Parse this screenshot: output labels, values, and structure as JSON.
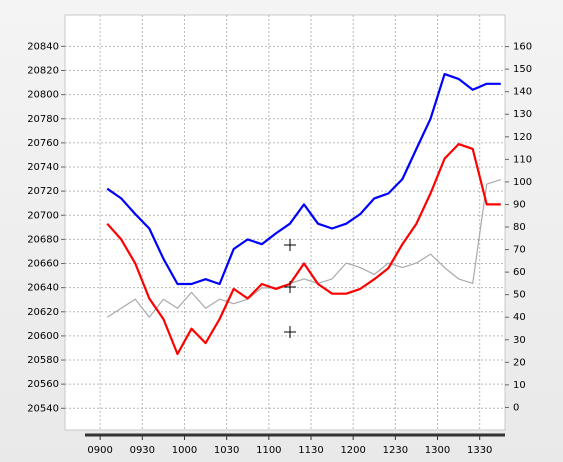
{
  "chart_data": {
    "type": "line",
    "x": [
      "0905",
      "0915",
      "0925",
      "0935",
      "0945",
      "0955",
      "1005",
      "1015",
      "1025",
      "1035",
      "1045",
      "1055",
      "1105",
      "1115",
      "1125",
      "1135",
      "1145",
      "1155",
      "1205",
      "1215",
      "1225",
      "1235",
      "1245",
      "1255",
      "1305",
      "1315",
      "1325",
      "1335",
      "1345"
    ],
    "xlim": [
      "0835",
      "1348"
    ],
    "xticks": [
      "0900",
      "0930",
      "1000",
      "1030",
      "1100",
      "1130",
      "1200",
      "1230",
      "1300",
      "1330"
    ],
    "ylim": [
      20522,
      20866
    ],
    "yticks": [
      20540,
      20560,
      20580,
      20600,
      20620,
      20640,
      20660,
      20680,
      20700,
      20720,
      20740,
      20760,
      20780,
      20800,
      20820,
      20840
    ],
    "y2lim": [
      -10,
      174
    ],
    "y2ticks": [
      0,
      10,
      20,
      30,
      40,
      50,
      60,
      70,
      80,
      90,
      100,
      110,
      120,
      130,
      140,
      150,
      160
    ],
    "grid": true,
    "series": [
      {
        "name": "blue",
        "color": "#0000ff",
        "values": [
          20722,
          20714,
          20701,
          20689,
          20664,
          20643,
          20643,
          20647,
          20643,
          20672,
          20680,
          20676,
          20685,
          20693,
          20709,
          20693,
          20689,
          20693,
          20701,
          20714,
          20718,
          20730,
          20755,
          20780,
          20817,
          20813,
          20804,
          20809,
          20809
        ]
      },
      {
        "name": "red",
        "color": "#ff0000",
        "values": [
          20693,
          20680,
          20660,
          20631,
          20614,
          20585,
          20606,
          20594,
          20614,
          20639,
          20631,
          20643,
          20639,
          20643,
          20660,
          20643,
          20635,
          20635,
          20639,
          20647,
          20656,
          20676,
          20693,
          20718,
          20747,
          20759,
          20755,
          20709,
          20709
        ]
      },
      {
        "name": "gray",
        "color": "#aaaaaa",
        "axis": "y2",
        "values": [
          40,
          44,
          48,
          40,
          48,
          44,
          51,
          44,
          48,
          46,
          48,
          53,
          53,
          55,
          57,
          55,
          57,
          64,
          62,
          59,
          64,
          62,
          64,
          68,
          62,
          57,
          55,
          99,
          101
        ]
      }
    ]
  }
}
